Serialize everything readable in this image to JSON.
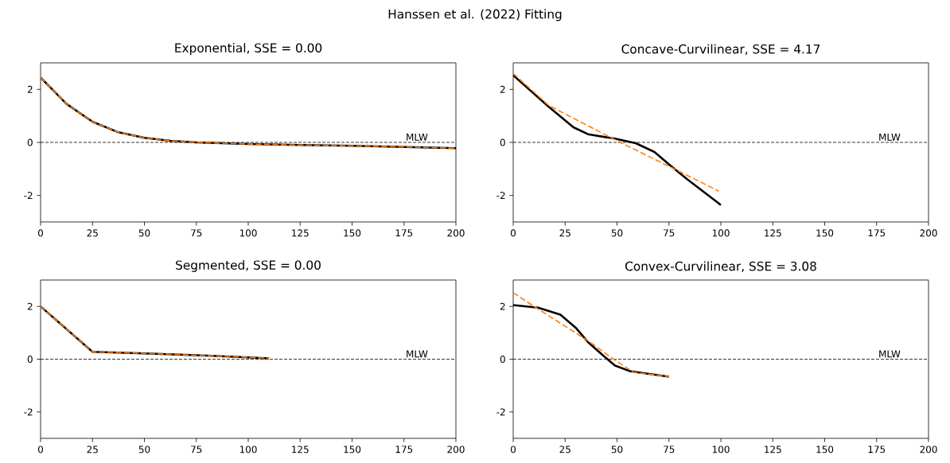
{
  "chart_data": [
    {
      "type": "line",
      "title": "Exponential, SSE = 0.00",
      "annotations": [
        "Hanssen et al. (2022) Fitting"
      ],
      "xlim": [
        0,
        200
      ],
      "ylim": [
        -3,
        3
      ],
      "xticks": [
        0,
        25,
        50,
        75,
        100,
        125,
        150,
        175,
        200
      ],
      "yticks": [
        -2,
        0,
        2
      ],
      "ref_lines": [
        {
          "axis": "y",
          "value": 0,
          "label": "MLW",
          "color": "#000000",
          "line_style": "dashed"
        }
      ],
      "series": [
        {
          "color": "#000000",
          "line_style": "solid",
          "x": [
            0,
            12.5,
            25,
            37.5,
            50,
            62.5,
            75,
            100,
            125,
            150,
            175,
            200
          ],
          "values": [
            2.45,
            1.45,
            0.78,
            0.38,
            0.17,
            0.06,
            0.0,
            -0.06,
            -0.1,
            -0.13,
            -0.17,
            -0.22
          ]
        },
        {
          "color": "#ff7f0e",
          "line_style": "dashed",
          "x": [
            0,
            12.5,
            25,
            37.5,
            50,
            62.5,
            75,
            100,
            125,
            150,
            175,
            200
          ],
          "values": [
            2.45,
            1.45,
            0.78,
            0.38,
            0.17,
            0.06,
            0.0,
            -0.06,
            -0.1,
            -0.13,
            -0.17,
            -0.22
          ]
        }
      ]
    },
    {
      "type": "line",
      "title": "Concave-Curvilinear, SSE = 4.17",
      "xlim": [
        0,
        200
      ],
      "ylim": [
        -3,
        3
      ],
      "xticks": [
        0,
        25,
        50,
        75,
        100,
        125,
        150,
        175,
        200
      ],
      "yticks": [
        -2,
        0,
        2
      ],
      "ref_lines": [
        {
          "axis": "y",
          "value": 0,
          "label": "MLW",
          "color": "#000000",
          "line_style": "dashed"
        }
      ],
      "series": [
        {
          "color": "#000000",
          "line_style": "solid",
          "x": [
            0,
            17,
            29,
            36,
            49,
            59,
            68,
            76,
            84,
            100
          ],
          "values": [
            2.53,
            1.35,
            0.57,
            0.31,
            0.14,
            -0.03,
            -0.36,
            -0.89,
            -1.4,
            -2.36
          ]
        },
        {
          "color": "#ff7f0e",
          "line_style": "dashed",
          "x": [
            0,
            17,
            49,
            84,
            99
          ],
          "values": [
            2.6,
            1.4,
            0.1,
            -1.25,
            -1.84
          ]
        }
      ]
    },
    {
      "type": "line",
      "title": "Segmented, SSE = 0.00",
      "xlim": [
        0,
        200
      ],
      "ylim": [
        -3,
        3
      ],
      "xticks": [
        0,
        25,
        50,
        75,
        100,
        125,
        150,
        175,
        200
      ],
      "yticks": [
        -2,
        0,
        2
      ],
      "ref_lines": [
        {
          "axis": "y",
          "value": 0,
          "label": "MLW",
          "color": "#000000",
          "line_style": "dashed"
        }
      ],
      "series": [
        {
          "color": "#000000",
          "line_style": "solid",
          "x": [
            0,
            25,
            50,
            75,
            100,
            110
          ],
          "values": [
            2.0,
            0.28,
            0.22,
            0.15,
            0.07,
            0.03
          ]
        },
        {
          "color": "#ff7f0e",
          "line_style": "dashed",
          "x": [
            0,
            25,
            50,
            75,
            100,
            110
          ],
          "values": [
            2.0,
            0.28,
            0.22,
            0.15,
            0.07,
            0.03
          ]
        }
      ]
    },
    {
      "type": "line",
      "title": "Convex-Curvilinear, SSE = 3.08",
      "xlim": [
        0,
        200
      ],
      "ylim": [
        -3,
        3
      ],
      "xticks": [
        0,
        25,
        50,
        75,
        100,
        125,
        150,
        175,
        200
      ],
      "yticks": [
        -2,
        0,
        2
      ],
      "ref_lines": [
        {
          "axis": "y",
          "value": 0,
          "label": "MLW",
          "color": "#000000",
          "line_style": "dashed"
        }
      ],
      "series": [
        {
          "color": "#000000",
          "line_style": "solid",
          "x": [
            0,
            12,
            22.7,
            30,
            36,
            42.7,
            49,
            56,
            62.7,
            75
          ],
          "values": [
            2.05,
            1.95,
            1.69,
            1.2,
            0.65,
            0.18,
            -0.24,
            -0.45,
            -0.53,
            -0.66
          ]
        },
        {
          "color": "#ff7f0e",
          "line_style": "dashed",
          "x": [
            0,
            12,
            24,
            36,
            48,
            58,
            75
          ],
          "values": [
            2.52,
            1.9,
            1.3,
            0.7,
            0.02,
            -0.5,
            -0.66
          ]
        }
      ]
    }
  ]
}
